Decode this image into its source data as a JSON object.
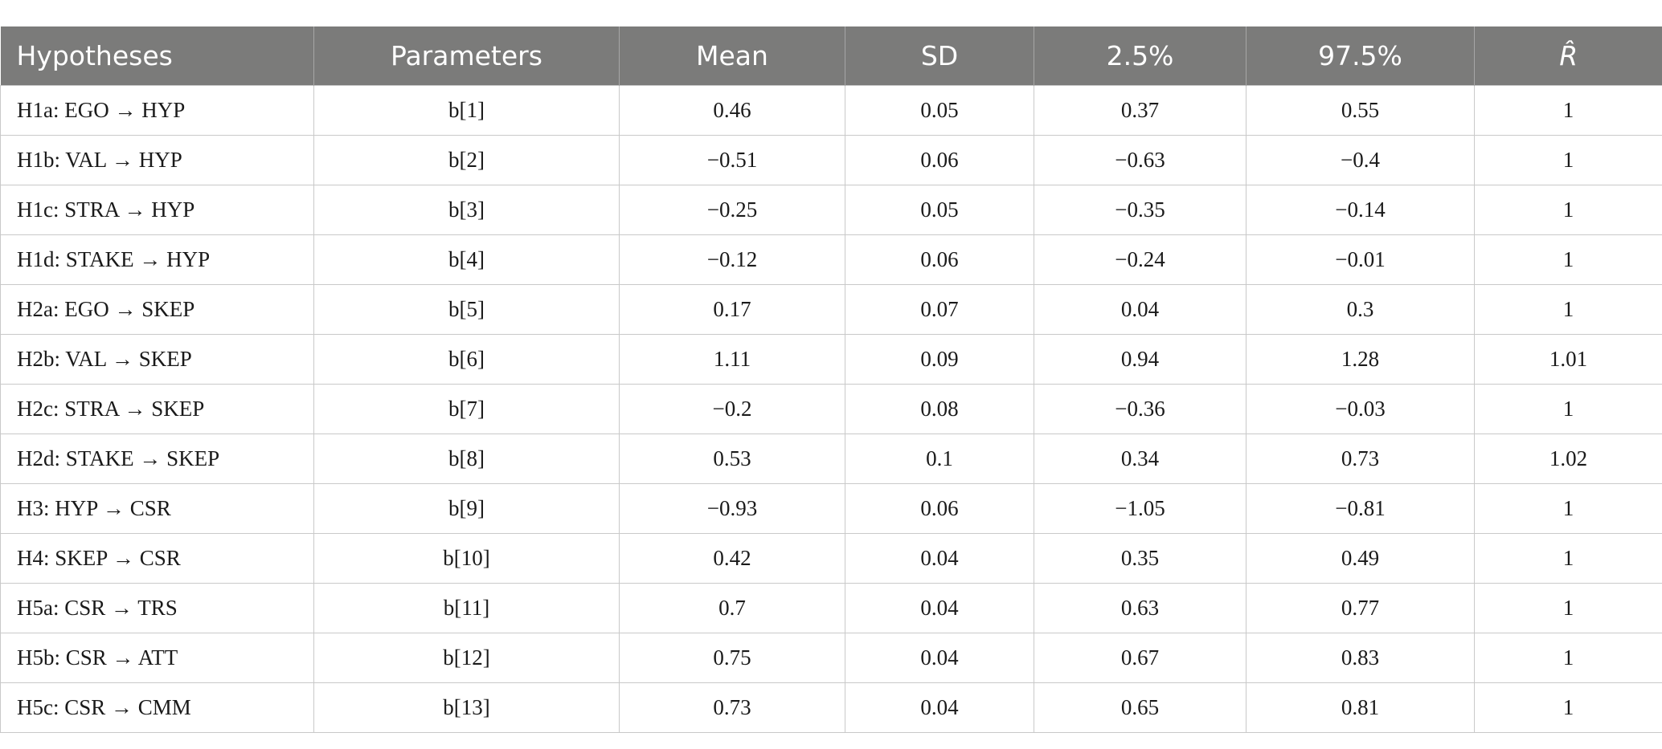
{
  "table": {
    "headers": [
      "Hypotheses",
      "Parameters",
      "Mean",
      "SD",
      "2.5%",
      "97.5%",
      "R̂"
    ],
    "rows": [
      [
        "H1a: EGO → HYP",
        "b[1]",
        "0.46",
        "0.05",
        "0.37",
        "0.55",
        "1"
      ],
      [
        "H1b: VAL → HYP",
        "b[2]",
        "−0.51",
        "0.06",
        "−0.63",
        "−0.4",
        "1"
      ],
      [
        "H1c: STRA → HYP",
        "b[3]",
        "−0.25",
        "0.05",
        "−0.35",
        "−0.14",
        "1"
      ],
      [
        "H1d: STAKE → HYP",
        "b[4]",
        "−0.12",
        "0.06",
        "−0.24",
        "−0.01",
        "1"
      ],
      [
        "H2a: EGO → SKEP",
        "b[5]",
        "0.17",
        "0.07",
        "0.04",
        "0.3",
        "1"
      ],
      [
        "H2b: VAL → SKEP",
        "b[6]",
        "1.11",
        "0.09",
        "0.94",
        "1.28",
        "1.01"
      ],
      [
        "H2c: STRA → SKEP",
        "b[7]",
        "−0.2",
        "0.08",
        "−0.36",
        "−0.03",
        "1"
      ],
      [
        "H2d: STAKE → SKEP",
        "b[8]",
        "0.53",
        "0.1",
        "0.34",
        "0.73",
        "1.02"
      ],
      [
        "H3: HYP → CSR",
        "b[9]",
        "−0.93",
        "0.06",
        "−1.05",
        "−0.81",
        "1"
      ],
      [
        "H4: SKEP → CSR",
        "b[10]",
        "0.42",
        "0.04",
        "0.35",
        "0.49",
        "1"
      ],
      [
        "H5a: CSR → TRS",
        "b[11]",
        "0.7",
        "0.04",
        "0.63",
        "0.77",
        "1"
      ],
      [
        "H5b: CSR → ATT",
        "b[12]",
        "0.75",
        "0.04",
        "0.67",
        "0.83",
        "1"
      ],
      [
        "H5c: CSR → CMM",
        "b[13]",
        "0.73",
        "0.04",
        "0.65",
        "0.81",
        "1"
      ]
    ]
  }
}
